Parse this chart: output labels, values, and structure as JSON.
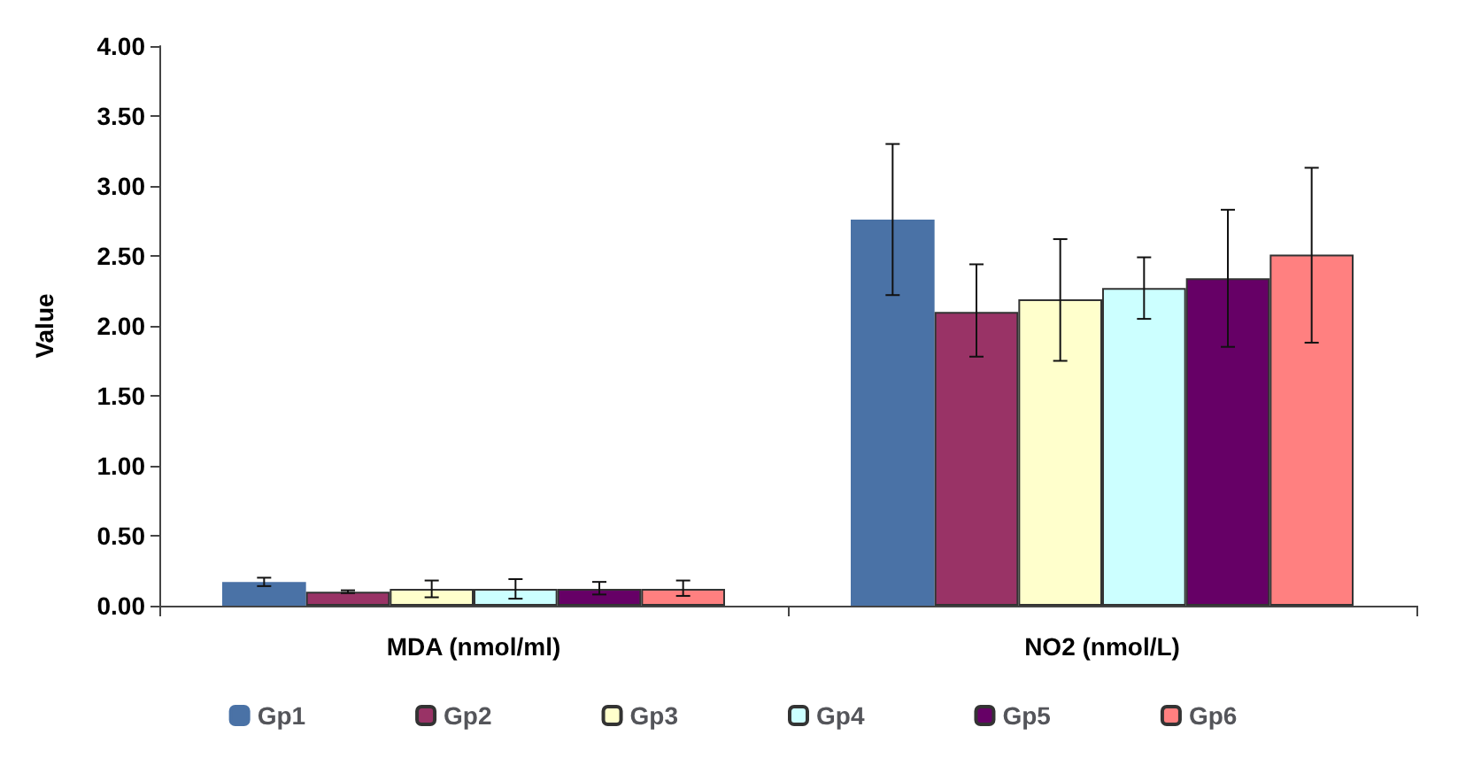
{
  "chart_data": {
    "type": "bar",
    "ylabel": "Value",
    "categories": [
      "MDA (nmol/ml)",
      "NO2 (nmol/L)"
    ],
    "series": [
      {
        "name": "Gp1",
        "color": "#4a72a6",
        "values": [
          0.17,
          2.76
        ],
        "errors": [
          [
            0.14,
            0.2
          ],
          [
            2.22,
            3.3
          ]
        ]
      },
      {
        "name": "Gp2",
        "color": "#993366",
        "values": [
          0.1,
          2.1
        ],
        "errors": [
          [
            0.09,
            0.11
          ],
          [
            1.78,
            2.44
          ]
        ]
      },
      {
        "name": "Gp3",
        "color": "#ffffcc",
        "values": [
          0.12,
          2.19
        ],
        "errors": [
          [
            0.06,
            0.18
          ],
          [
            1.75,
            2.62
          ]
        ]
      },
      {
        "name": "Gp4",
        "color": "#ccffff",
        "values": [
          0.12,
          2.27
        ],
        "errors": [
          [
            0.05,
            0.19
          ],
          [
            2.05,
            2.49
          ]
        ]
      },
      {
        "name": "Gp5",
        "color": "#660066",
        "values": [
          0.12,
          2.34
        ],
        "errors": [
          [
            0.08,
            0.17
          ],
          [
            1.85,
            2.83
          ]
        ]
      },
      {
        "name": "Gp6",
        "color": "#ff8080",
        "values": [
          0.12,
          2.51
        ],
        "errors": [
          [
            0.07,
            0.18
          ],
          [
            1.88,
            3.13
          ]
        ]
      }
    ],
    "ylim": [
      0,
      4
    ],
    "yticks": [
      {
        "value": 0,
        "label": "0.00"
      },
      {
        "value": 0.5,
        "label": "0.50"
      },
      {
        "value": 1,
        "label": "1.00"
      },
      {
        "value": 1.5,
        "label": "1.50"
      },
      {
        "value": 2,
        "label": "2.00"
      },
      {
        "value": 2.5,
        "label": "2.50"
      },
      {
        "value": 3,
        "label": "3.00"
      },
      {
        "value": 3.5,
        "label": "3.50"
      },
      {
        "value": 4,
        "label": "4.00"
      }
    ],
    "grid": false,
    "legend": "bottom"
  }
}
